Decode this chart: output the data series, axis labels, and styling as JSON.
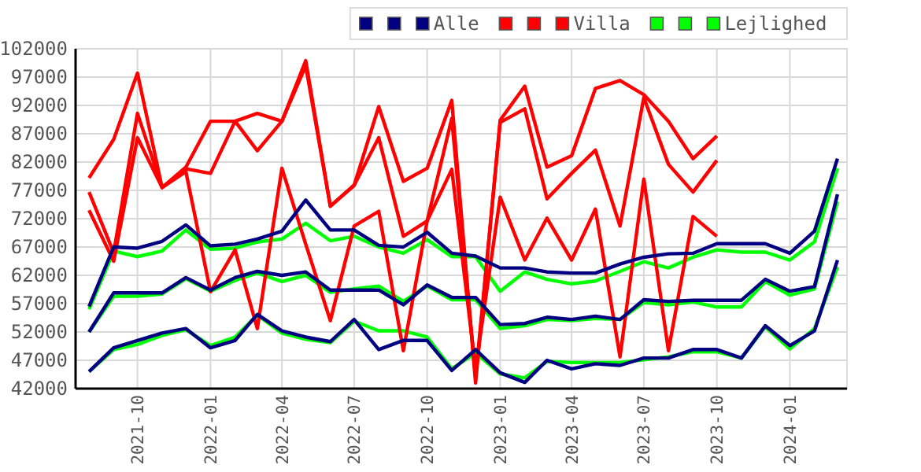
{
  "chart_data": {
    "type": "line",
    "x": [
      "2021-08",
      "2021-09",
      "2021-10",
      "2021-11",
      "2021-12",
      "2022-01",
      "2022-02",
      "2022-03",
      "2022-04",
      "2022-05",
      "2022-06",
      "2022-07",
      "2022-08",
      "2022-09",
      "2022-10",
      "2022-11",
      "2022-12",
      "2023-01",
      "2023-02",
      "2023-03",
      "2023-04",
      "2023-05",
      "2023-06",
      "2023-07",
      "2023-08",
      "2023-09",
      "2023-10",
      "2023-11",
      "2023-12",
      "2024-01",
      "2024-02",
      "2024-03"
    ],
    "series": [
      {
        "color": "#000080",
        "values": [
          56500,
          67000,
          66800,
          68000,
          70900,
          67200,
          67500,
          68400,
          69800,
          75300,
          70000,
          70000,
          67300,
          67000,
          69600,
          65900,
          65400,
          63300,
          63300,
          62600,
          62400,
          62400,
          64000,
          65200,
          65800,
          65900,
          67600,
          67600,
          67600,
          65900,
          69800,
          82600
        ]
      },
      {
        "color": "#000080",
        "values": [
          52000,
          58900,
          58900,
          58900,
          61600,
          59400,
          61600,
          62700,
          62000,
          62600,
          59400,
          59400,
          59400,
          56800,
          60300,
          58100,
          58100,
          53300,
          53500,
          54600,
          54200,
          54800,
          54200,
          57700,
          57400,
          57600,
          57600,
          57600,
          61300,
          59200,
          60000,
          76300
        ]
      },
      {
        "name": "Alle",
        "color": "#000080",
        "values": [
          45000,
          49200,
          50500,
          51800,
          52600,
          49200,
          50500,
          55100,
          52200,
          51100,
          50300,
          54200,
          48900,
          50500,
          50500,
          45200,
          48900,
          44800,
          43100,
          47000,
          45500,
          46400,
          46100,
          47400,
          47400,
          48900,
          48900,
          47400,
          53100,
          49600,
          52200,
          64700
        ]
      },
      {
        "color": "#ff0000",
        "values": [
          79200,
          86000,
          97700,
          77500,
          81100,
          89200,
          89200,
          90600,
          89200,
          99900,
          74200,
          77900,
          91800,
          78600,
          80900,
          92900,
          43000,
          89400,
          95400,
          81100,
          83100,
          95000,
          96400,
          93900,
          89200,
          82600,
          86600,
          null,
          null,
          null,
          null,
          null
        ]
      },
      {
        "color": "#ff0000",
        "values": [
          76700,
          66000,
          90600,
          77500,
          80800,
          80000,
          89200,
          84000,
          89200,
          99000,
          74200,
          77900,
          86300,
          68900,
          71600,
          89700,
          44000,
          89000,
          91400,
          75500,
          80000,
          84100,
          70700,
          93400,
          81600,
          76700,
          82300,
          null,
          null,
          null,
          null,
          null
        ]
      },
      {
        "name": "Villa",
        "color": "#ff0000",
        "values": [
          73500,
          64500,
          86300,
          77500,
          80300,
          59100,
          66500,
          52600,
          80900,
          67500,
          54000,
          70700,
          73300,
          48700,
          71600,
          80700,
          45500,
          75800,
          64700,
          72100,
          64700,
          73700,
          47600,
          79000,
          48700,
          72400,
          68900,
          null,
          null,
          null,
          null,
          null
        ]
      },
      {
        "color": "#00ff00",
        "values": [
          56000,
          66300,
          65300,
          66300,
          70000,
          66600,
          66800,
          67900,
          68400,
          71200,
          68100,
          68900,
          67000,
          65900,
          68300,
          65300,
          65300,
          59200,
          62600,
          61300,
          60500,
          61000,
          62700,
          64400,
          63300,
          65200,
          66500,
          66100,
          66100,
          64700,
          67900,
          80900
        ]
      },
      {
        "color": "#00ff00",
        "values": [
          52000,
          58300,
          58300,
          58700,
          61400,
          59200,
          61100,
          62400,
          60900,
          62000,
          59000,
          59600,
          60100,
          57400,
          60100,
          57700,
          57700,
          52600,
          53100,
          54200,
          54000,
          54400,
          54200,
          57200,
          56800,
          57300,
          56400,
          56400,
          60900,
          58500,
          59600,
          75000
        ]
      },
      {
        "name": "Lejlighed",
        "color": "#00ff00",
        "values": [
          45000,
          48900,
          49800,
          51400,
          52400,
          49600,
          51100,
          55000,
          51800,
          50700,
          50100,
          53900,
          52200,
          52200,
          51100,
          45500,
          48300,
          44600,
          43900,
          46800,
          46600,
          46600,
          46600,
          47100,
          47600,
          48500,
          48500,
          47400,
          52900,
          49000,
          52600,
          63500
        ]
      }
    ],
    "xlim": [
      "2021-07-15",
      "2024-03-13"
    ],
    "xticks": [
      {
        "value": "2021-10-01",
        "label": "2021-10"
      },
      {
        "value": "2022-01-01",
        "label": "2022-01"
      },
      {
        "value": "2022-04-01",
        "label": "2022-04"
      },
      {
        "value": "2022-07-01",
        "label": "2022-07"
      },
      {
        "value": "2022-10-01",
        "label": "2022-10"
      },
      {
        "value": "2023-01-01",
        "label": "2023-01"
      },
      {
        "value": "2023-04-01",
        "label": "2023-04"
      },
      {
        "value": "2023-07-01",
        "label": "2023-07"
      },
      {
        "value": "2023-10-01",
        "label": "2023-10"
      },
      {
        "value": "2024-01-01",
        "label": "2024-01"
      }
    ],
    "ylim": [
      42000,
      102000
    ],
    "yticks": [
      42000,
      47000,
      52000,
      57000,
      62000,
      67000,
      72000,
      77000,
      82000,
      87000,
      92000,
      97000,
      102000
    ],
    "grid": true,
    "legend": "top right",
    "marker": "none",
    "line_style": "solid"
  }
}
